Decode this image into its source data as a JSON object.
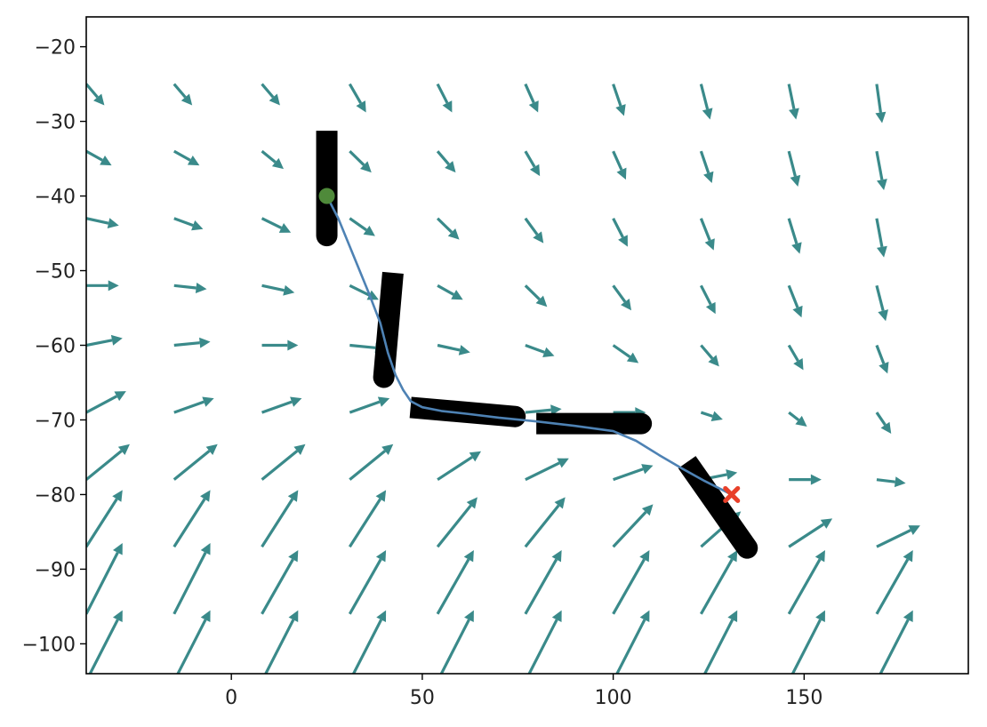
{
  "chart_data": {
    "type": "quiver",
    "title": "",
    "xlabel": "",
    "ylabel": "",
    "xlim": [
      -38,
      193
    ],
    "ylim": [
      -104,
      -16
    ],
    "grid": false,
    "x_ticks": [
      0,
      50,
      100,
      150
    ],
    "y_ticks": [
      -20,
      -30,
      -40,
      -50,
      -60,
      -70,
      -80,
      -90,
      -100
    ],
    "x_tick_labels": [
      "0",
      "50",
      "100",
      "150"
    ],
    "y_tick_labels": [
      "−20",
      "−30",
      "−40",
      "−50",
      "−60",
      "−70",
      "−80",
      "−90",
      "−100"
    ],
    "vector_field": {
      "color": "#3a8a8a",
      "x_grid": [
        -38,
        -15,
        8,
        31,
        54,
        77,
        100,
        123,
        146,
        169
      ],
      "y_grid": [
        -25,
        -34,
        -43,
        -52,
        -60,
        -69,
        -78,
        -87,
        -96,
        -105
      ],
      "note_units": "arrow components in data units",
      "u": [
        [
          5,
          5,
          5,
          4.5,
          4,
          3.5,
          3,
          2.5,
          2,
          1.5
        ],
        [
          7,
          7,
          6,
          6,
          5,
          4,
          3.5,
          3,
          2.5,
          2
        ],
        [
          9,
          8,
          8,
          7,
          6,
          5,
          4,
          3.5,
          3,
          2
        ],
        [
          9,
          9,
          9,
          8,
          7,
          6,
          5,
          4,
          3.5,
          2.5
        ],
        [
          10,
          10,
          10,
          10,
          9,
          8,
          7,
          5,
          4,
          3
        ],
        [
          11,
          11,
          11,
          11,
          11,
          10,
          9,
          6,
          5,
          4
        ],
        [
          12,
          12,
          12,
          12,
          12,
          12,
          11,
          10,
          9,
          8
        ],
        [
          10,
          10,
          10,
          10,
          11,
          11,
          11,
          11,
          12,
          12
        ],
        [
          10,
          10,
          10,
          10,
          10,
          10,
          10,
          10,
          10,
          10
        ],
        [
          10,
          10,
          10,
          10,
          10,
          10,
          10,
          10,
          10,
          10
        ]
      ],
      "v": [
        [
          -3,
          -3,
          -3,
          -4,
          -4,
          -4,
          -4.5,
          -5,
          -5,
          -5.5
        ],
        [
          -2,
          -2,
          -2.5,
          -3,
          -3,
          -3.5,
          -4,
          -4.5,
          -5,
          -5.5
        ],
        [
          -1,
          -1.5,
          -2,
          -2.5,
          -3,
          -3.5,
          -4,
          -4.5,
          -5,
          -5.5
        ],
        [
          0,
          -0.5,
          -1,
          -2,
          -2,
          -3,
          -3.5,
          -4,
          -4.5,
          -5
        ],
        [
          1,
          0.5,
          0,
          -0.5,
          -1,
          -1.5,
          -2.5,
          -3,
          -3.5,
          -4
        ],
        [
          3,
          2,
          2,
          2,
          1,
          0.5,
          0,
          -1,
          -2,
          -3
        ],
        [
          5,
          5,
          5,
          5,
          4,
          3,
          2,
          1,
          0,
          -0.5
        ],
        [
          8,
          8,
          8,
          8,
          7,
          7,
          6,
          5,
          4,
          3
        ],
        [
          10,
          10,
          9,
          9,
          9,
          9,
          9,
          9,
          9,
          9
        ],
        [
          10,
          10,
          10,
          10,
          10,
          10,
          10,
          10,
          10,
          10
        ]
      ]
    },
    "trajectory": {
      "color": "#4e82b4",
      "x": [
        25,
        28,
        32,
        36,
        39,
        41,
        43,
        45,
        47,
        50,
        55,
        62,
        70,
        80,
        90,
        100,
        106,
        112,
        118,
        124,
        131
      ],
      "y": [
        -40,
        -43,
        -48,
        -53,
        -57,
        -61,
        -64,
        -66,
        -67.5,
        -68.3,
        -68.8,
        -69.2,
        -69.7,
        -70.2,
        -70.8,
        -71.5,
        -72.8,
        -74.7,
        -76.5,
        -78.2,
        -80
      ]
    },
    "start_marker": {
      "x": 25,
      "y": -40,
      "color": "#4f8a3a"
    },
    "end_marker": {
      "x": 131,
      "y": -80,
      "color": "#e8402a"
    },
    "boats": {
      "color": "#000000",
      "poses": [
        {
          "x": 25,
          "y": -39,
          "heading_deg": -90
        },
        {
          "x": 41,
          "y": -58,
          "heading_deg": -95
        },
        {
          "x": 62,
          "y": -69,
          "heading_deg": -5
        },
        {
          "x": 95,
          "y": -70.5,
          "heading_deg": 0
        },
        {
          "x": 128,
          "y": -82,
          "heading_deg": -55
        }
      ]
    }
  }
}
